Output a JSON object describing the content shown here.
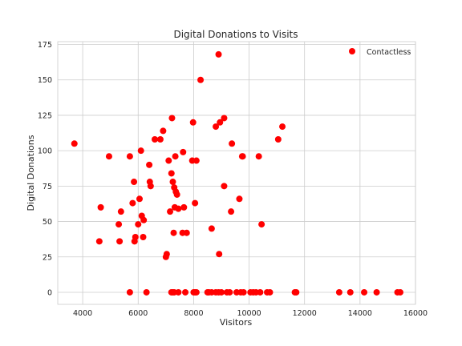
{
  "chart_data": {
    "type": "scatter",
    "title": "Digital Donations to Visits",
    "xlabel": "Visitors",
    "ylabel": "Digital Donations",
    "xlim": [
      3100,
      16000
    ],
    "ylim": [
      -8.5,
      177
    ],
    "xticks": [
      4000,
      6000,
      8000,
      10000,
      12000,
      14000,
      16000
    ],
    "yticks": [
      0,
      25,
      50,
      75,
      100,
      125,
      150,
      175
    ],
    "grid": true,
    "legend_position": "top-right",
    "series": [
      {
        "name": "Contactless",
        "color": "#ff0000",
        "points": [
          [
            3700,
            105
          ],
          [
            4600,
            36
          ],
          [
            4650,
            60
          ],
          [
            4950,
            96
          ],
          [
            5300,
            48
          ],
          [
            5330,
            36
          ],
          [
            5380,
            57
          ],
          [
            5700,
            96
          ],
          [
            5800,
            63
          ],
          [
            5850,
            78
          ],
          [
            5870,
            36
          ],
          [
            5900,
            39
          ],
          [
            6000,
            48
          ],
          [
            6050,
            66
          ],
          [
            6100,
            100
          ],
          [
            6130,
            54
          ],
          [
            6180,
            39
          ],
          [
            6200,
            51
          ],
          [
            6400,
            90
          ],
          [
            6420,
            78
          ],
          [
            6450,
            75
          ],
          [
            6600,
            108
          ],
          [
            6800,
            108
          ],
          [
            6900,
            114
          ],
          [
            7000,
            25
          ],
          [
            7030,
            27
          ],
          [
            7100,
            93
          ],
          [
            7150,
            57
          ],
          [
            7200,
            84
          ],
          [
            7220,
            123
          ],
          [
            7250,
            78
          ],
          [
            7280,
            42
          ],
          [
            7300,
            74
          ],
          [
            7320,
            60
          ],
          [
            7340,
            96
          ],
          [
            7360,
            71
          ],
          [
            7400,
            69
          ],
          [
            7450,
            59
          ],
          [
            7600,
            42
          ],
          [
            7620,
            99
          ],
          [
            7650,
            60
          ],
          [
            7750,
            42
          ],
          [
            7950,
            93
          ],
          [
            7980,
            120
          ],
          [
            8050,
            63
          ],
          [
            8100,
            93
          ],
          [
            8250,
            150
          ],
          [
            8650,
            45
          ],
          [
            8800,
            117
          ],
          [
            8900,
            168
          ],
          [
            8920,
            27
          ],
          [
            8950,
            120
          ],
          [
            9100,
            123
          ],
          [
            9100,
            75
          ],
          [
            9350,
            57
          ],
          [
            9380,
            105
          ],
          [
            9650,
            66
          ],
          [
            9750,
            96
          ],
          [
            9770,
            96
          ],
          [
            10350,
            96
          ],
          [
            10450,
            48
          ],
          [
            11050,
            108
          ],
          [
            11200,
            117
          ],
          [
            5700,
            0
          ],
          [
            6300,
            0
          ],
          [
            7200,
            0
          ],
          [
            7250,
            0
          ],
          [
            7300,
            0
          ],
          [
            7450,
            0
          ],
          [
            7700,
            0
          ],
          [
            8000,
            0
          ],
          [
            8050,
            0
          ],
          [
            8100,
            0
          ],
          [
            8500,
            0
          ],
          [
            8550,
            0
          ],
          [
            8650,
            0
          ],
          [
            8800,
            0
          ],
          [
            8900,
            0
          ],
          [
            9000,
            0
          ],
          [
            9200,
            0
          ],
          [
            9300,
            0
          ],
          [
            9550,
            0
          ],
          [
            9700,
            0
          ],
          [
            9800,
            0
          ],
          [
            10050,
            0
          ],
          [
            10150,
            0
          ],
          [
            10250,
            0
          ],
          [
            10400,
            0
          ],
          [
            10650,
            0
          ],
          [
            10750,
            0
          ],
          [
            11650,
            0
          ],
          [
            11700,
            0
          ],
          [
            13250,
            0
          ],
          [
            13650,
            0
          ],
          [
            14150,
            0
          ],
          [
            14600,
            0
          ],
          [
            15350,
            0
          ],
          [
            15450,
            0
          ]
        ]
      }
    ]
  }
}
